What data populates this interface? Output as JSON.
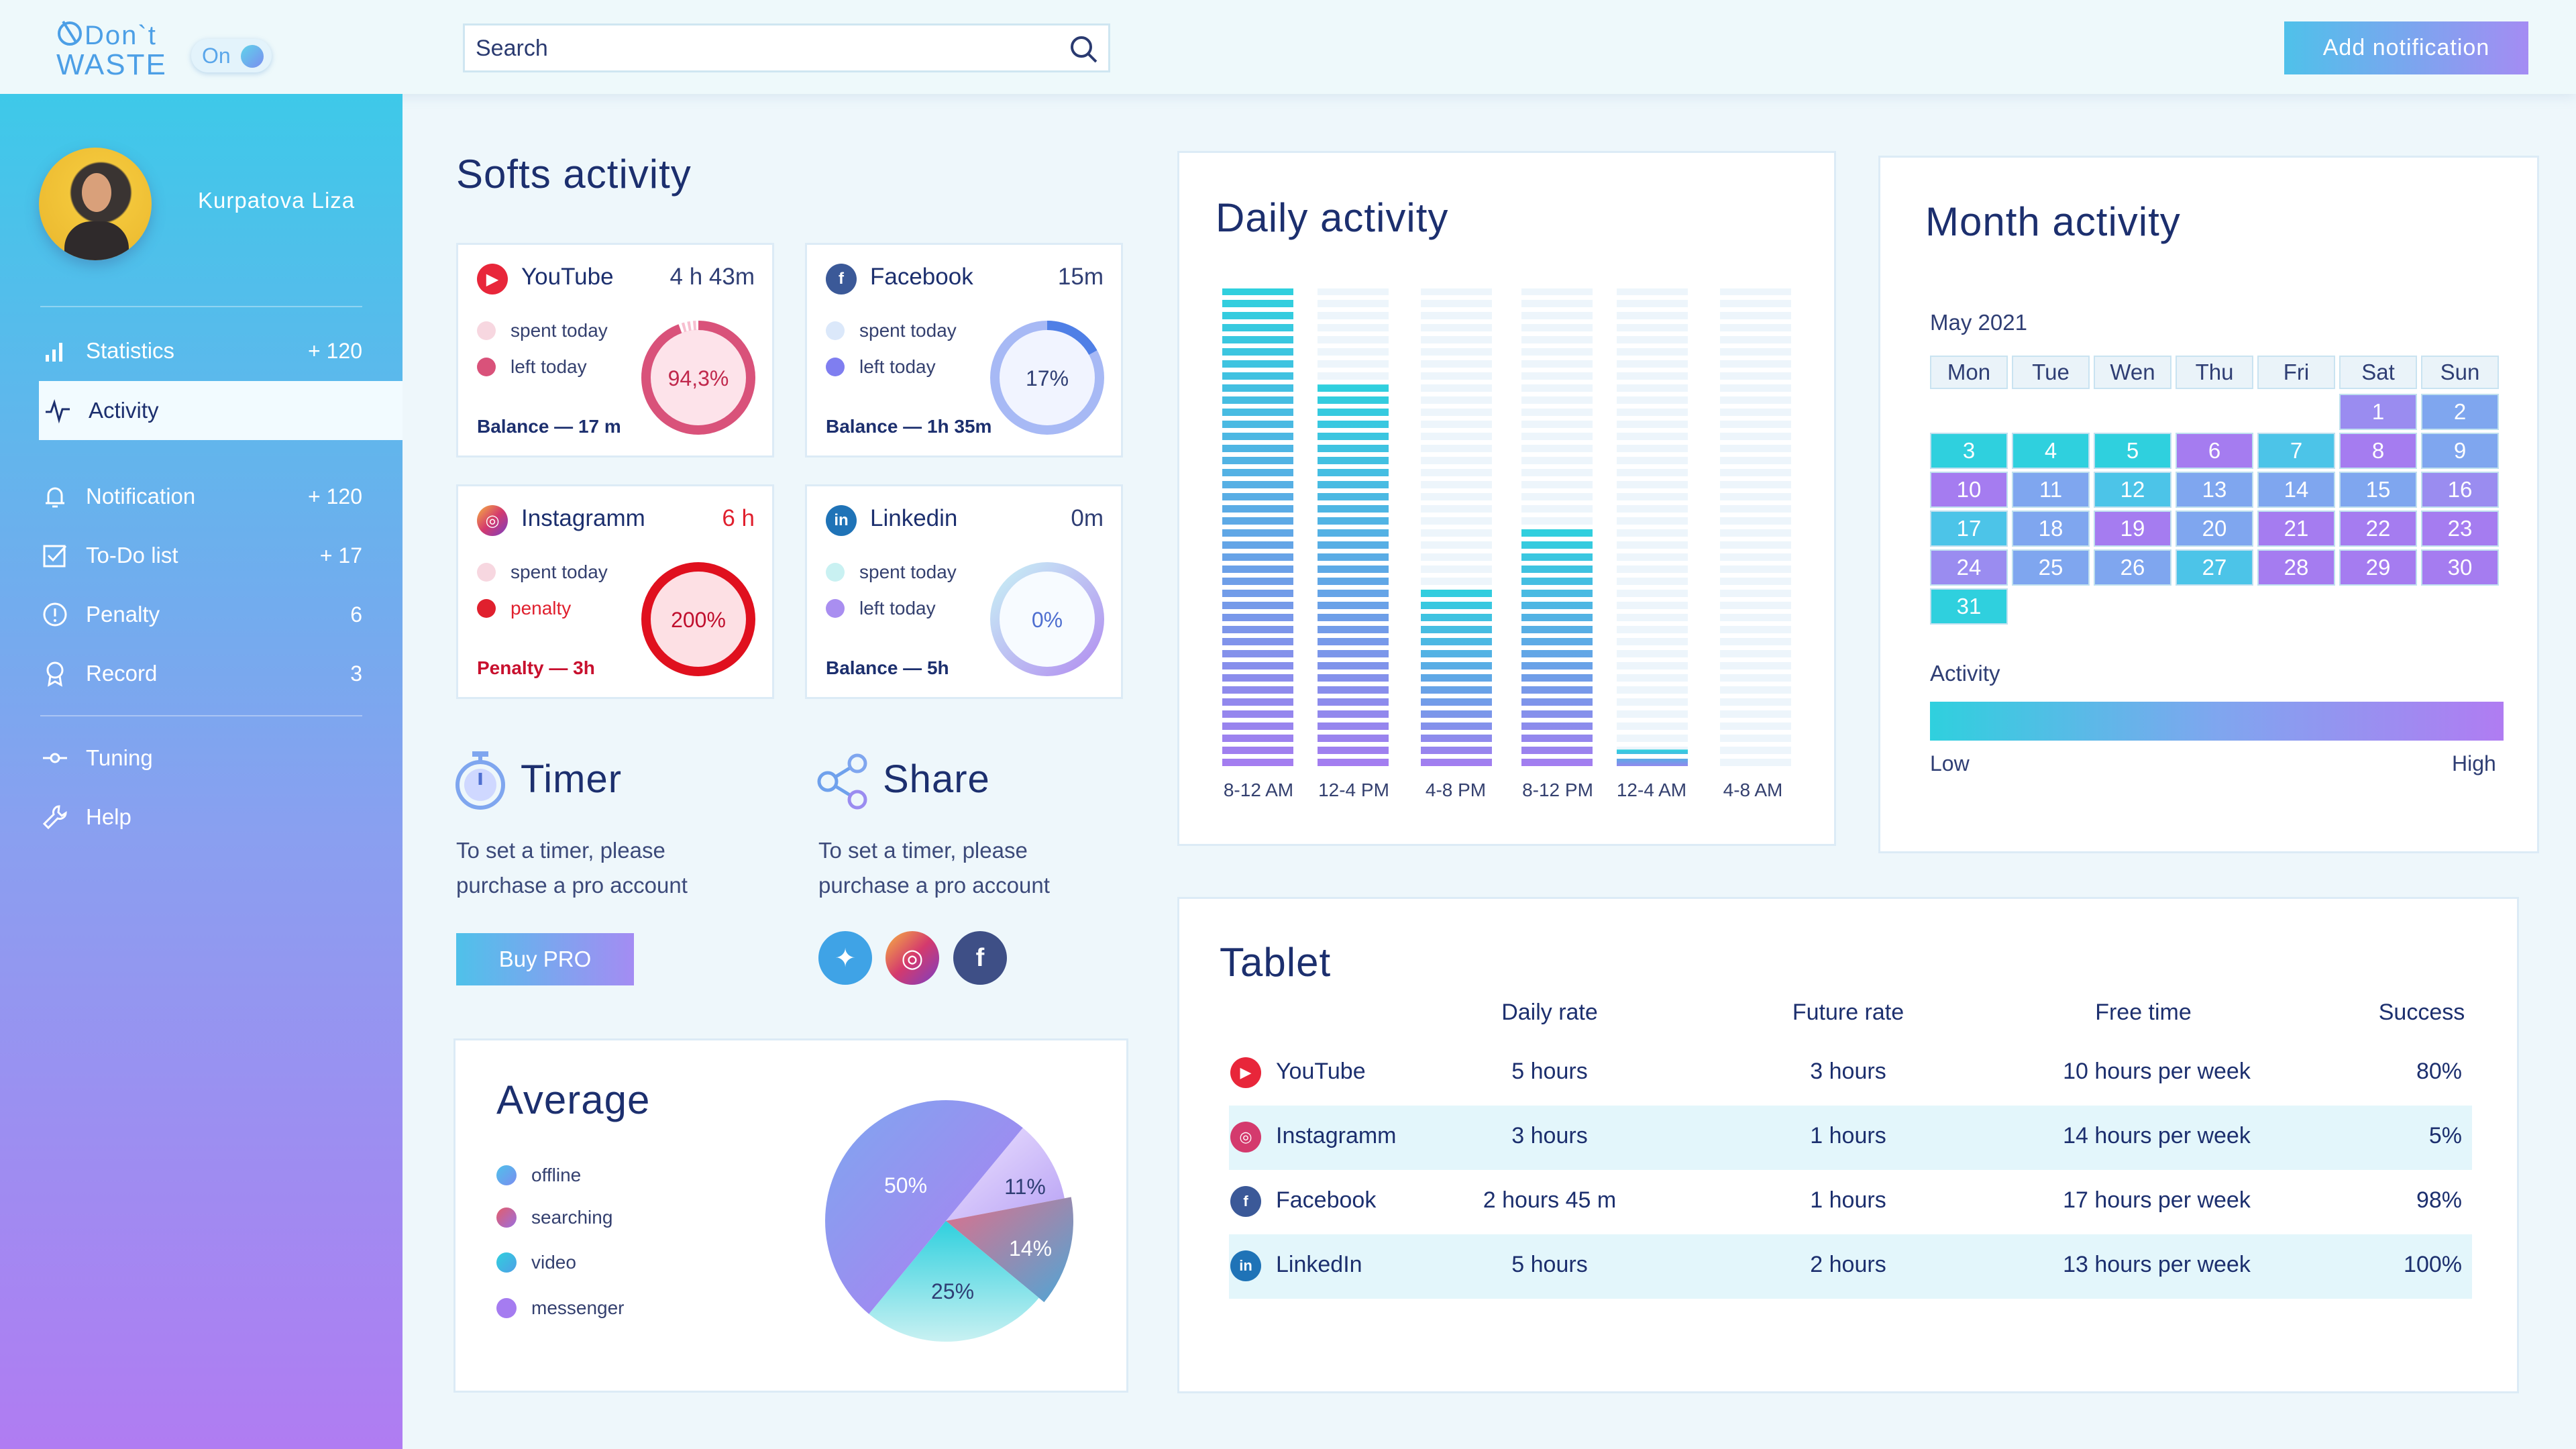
{
  "app": {
    "logo_line1": "Don`t",
    "logo_line2": "WASTE",
    "toggle_label": "On"
  },
  "search": {
    "placeholder": "Search"
  },
  "header": {
    "add_button": "Add notification"
  },
  "sidebar": {
    "user": "Kurpatova Liza",
    "items": [
      {
        "label": "Statistics",
        "count": "+ 120",
        "icon": "bar-chart-icon"
      },
      {
        "label": "Activity",
        "count": "",
        "icon": "pulse-icon",
        "active": true
      },
      {
        "label": "Notification",
        "count": "+ 120",
        "icon": "bell-icon"
      },
      {
        "label": "To-Do list",
        "count": "+ 17",
        "icon": "checkbox-icon"
      },
      {
        "label": "Penalty",
        "count": "6",
        "icon": "alert-icon"
      },
      {
        "label": "Record",
        "count": "3",
        "icon": "award-icon"
      },
      {
        "label": "Tuning",
        "count": "",
        "icon": "slider-icon"
      },
      {
        "label": "Help",
        "count": "",
        "icon": "wrench-icon"
      }
    ]
  },
  "softs": {
    "title": "Softs activity",
    "cards": [
      {
        "name": "YouTube",
        "time": "4 h 43m",
        "legend1": "spent today",
        "legend2": "left today",
        "balance": "Balance — 17 m",
        "ring_label": "94,3%",
        "progress": 0.943,
        "color": "#e8263a"
      },
      {
        "name": "Facebook",
        "time": "15m",
        "legend1": "spent today",
        "legend2": "left today",
        "balance": "Balance — 1h 35m",
        "ring_label": "17%",
        "progress": 0.17,
        "color": "#3b5998"
      },
      {
        "name": "Instagramm",
        "time": "6 h",
        "legend1": "spent today",
        "legend2": "penalty",
        "balance": "Penalty — 3h",
        "ring_label": "200%",
        "progress": 1.0,
        "color": "#d43a6d"
      },
      {
        "name": "Linkedin",
        "time": "0m",
        "legend1": "spent today",
        "legend2": "left today",
        "balance": "Balance —  5h",
        "ring_label": "0%",
        "progress": 0.0,
        "color": "#1f73b7"
      }
    ]
  },
  "timer": {
    "title": "Timer",
    "desc1": "To set a timer, please",
    "desc2": "purchase a pro account",
    "button": "Buy PRO"
  },
  "share": {
    "title": "Share",
    "desc1": "To set a timer, please",
    "desc2": "purchase a pro account"
  },
  "average": {
    "title": "Average",
    "legend": [
      "offline",
      "searching",
      "video",
      "messenger"
    ],
    "chart_data": {
      "type": "pie",
      "labels": [
        "50%",
        "11%",
        "14%",
        "25%"
      ],
      "values": [
        50,
        11,
        14,
        25
      ]
    }
  },
  "daily": {
    "title": "Daily activity",
    "chart_data": {
      "type": "bar",
      "categories": [
        "8-12 AM",
        "12-4 PM",
        "4-8 PM",
        "8-12 PM",
        "12-4 AM",
        "4-8 AM"
      ],
      "values": [
        100,
        80,
        38,
        50,
        4,
        0
      ],
      "ylim": [
        0,
        100
      ]
    }
  },
  "month": {
    "title": "Month activity",
    "month_label": "May 2021",
    "weekdays": [
      "Mon",
      "Tue",
      "Wen",
      "Thu",
      "Fri",
      "Sat",
      "Sun"
    ],
    "days": [
      {
        "d": "1",
        "c": "#9a8cf0"
      },
      {
        "d": "2",
        "c": "#7fa6ef"
      },
      {
        "d": "3",
        "c": "#2fd0de"
      },
      {
        "d": "4",
        "c": "#2fd0de"
      },
      {
        "d": "5",
        "c": "#2fd0de"
      },
      {
        "d": "6",
        "c": "#a57cf0"
      },
      {
        "d": "7",
        "c": "#4cc4e8"
      },
      {
        "d": "8",
        "c": "#a57cf0"
      },
      {
        "d": "9",
        "c": "#7fa6ef"
      },
      {
        "d": "10",
        "c": "#a57cf0"
      },
      {
        "d": "11",
        "c": "#7fa6ef"
      },
      {
        "d": "12",
        "c": "#4cc4e8"
      },
      {
        "d": "13",
        "c": "#7fa6ef"
      },
      {
        "d": "14",
        "c": "#7fa6ef"
      },
      {
        "d": "15",
        "c": "#7fa6ef"
      },
      {
        "d": "16",
        "c": "#9a8cf0"
      },
      {
        "d": "17",
        "c": "#4cc4e8"
      },
      {
        "d": "18",
        "c": "#7fa6ef"
      },
      {
        "d": "19",
        "c": "#a57cf0"
      },
      {
        "d": "20",
        "c": "#7fa6ef"
      },
      {
        "d": "21",
        "c": "#a57cf0"
      },
      {
        "d": "22",
        "c": "#a57cf0"
      },
      {
        "d": "23",
        "c": "#a57cf0"
      },
      {
        "d": "24",
        "c": "#9a8cf0"
      },
      {
        "d": "25",
        "c": "#7fa6ef"
      },
      {
        "d": "26",
        "c": "#7fa6ef"
      },
      {
        "d": "27",
        "c": "#4cc4e8"
      },
      {
        "d": "28",
        "c": "#a57cf0"
      },
      {
        "d": "29",
        "c": "#a57cf0"
      },
      {
        "d": "30",
        "c": "#a57cf0"
      },
      {
        "d": "31",
        "c": "#2fd0de"
      }
    ],
    "activity_label": "Activity",
    "low": "Low",
    "high": "High"
  },
  "tablet": {
    "title": "Tablet",
    "headers": [
      "Daily rate",
      "Future rate",
      "Free time",
      "Success"
    ],
    "rows": [
      {
        "app": "YouTube",
        "daily": "5 hours",
        "future": "3 hours",
        "free": "10 hours per week",
        "success": "80%",
        "color": "#e8263a"
      },
      {
        "app": "Instagramm",
        "daily": "3 hours",
        "future": "1 hours",
        "free": "14 hours per week",
        "success": "5%",
        "color": "#d43a6d"
      },
      {
        "app": "Facebook",
        "daily": "2 hours 45 m",
        "future": "1 hours",
        "free": "17 hours per week",
        "success": "98%",
        "color": "#3b5998"
      },
      {
        "app": "LinkedIn",
        "daily": "5 hours",
        "future": "2 hours",
        "free": "13 hours per week",
        "success": "100%",
        "color": "#1f73b7"
      }
    ]
  },
  "colors": {
    "accent_start": "#4fc1ea",
    "accent_end": "#a48cf3",
    "navy": "#1c2f6e"
  }
}
